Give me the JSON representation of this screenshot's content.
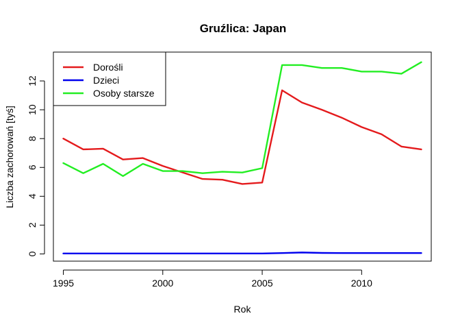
{
  "chart_data": {
    "type": "line",
    "title": "Gruźlica: Japan",
    "xlabel": "Rok",
    "ylabel": "Liczba zachorowań [tyś]",
    "xlim": [
      1994.5,
      2013.5
    ],
    "ylim": [
      -0.5,
      14.0
    ],
    "x_ticks": [
      1995,
      2000,
      2005,
      2010
    ],
    "y_ticks": [
      0,
      2,
      4,
      6,
      8,
      10,
      12
    ],
    "grid": false,
    "legend_position": "top-left",
    "x": [
      1995,
      1996,
      1997,
      1998,
      1999,
      2000,
      2001,
      2002,
      2003,
      2004,
      2005,
      2006,
      2007,
      2008,
      2009,
      2010,
      2011,
      2012,
      2013
    ],
    "series": [
      {
        "name": "Dorośli",
        "color": "#e41a1c",
        "values": [
          8.0,
          7.25,
          7.3,
          6.55,
          6.65,
          6.1,
          5.65,
          5.2,
          5.15,
          4.85,
          4.95,
          11.35,
          10.5,
          10.0,
          9.45,
          8.8,
          8.3,
          7.45,
          7.25
        ]
      },
      {
        "name": "Dzieci",
        "color": "#0000ee",
        "values": [
          0.03,
          0.03,
          0.03,
          0.03,
          0.03,
          0.03,
          0.03,
          0.03,
          0.03,
          0.03,
          0.03,
          0.06,
          0.1,
          0.07,
          0.06,
          0.06,
          0.06,
          0.06,
          0.06
        ]
      },
      {
        "name": "Osoby starsze",
        "color": "#22ee22",
        "values": [
          6.3,
          5.6,
          6.25,
          5.4,
          6.25,
          5.75,
          5.75,
          5.6,
          5.7,
          5.65,
          5.95,
          13.1,
          13.1,
          12.9,
          12.9,
          12.65,
          12.65,
          12.5,
          13.3
        ]
      }
    ]
  }
}
